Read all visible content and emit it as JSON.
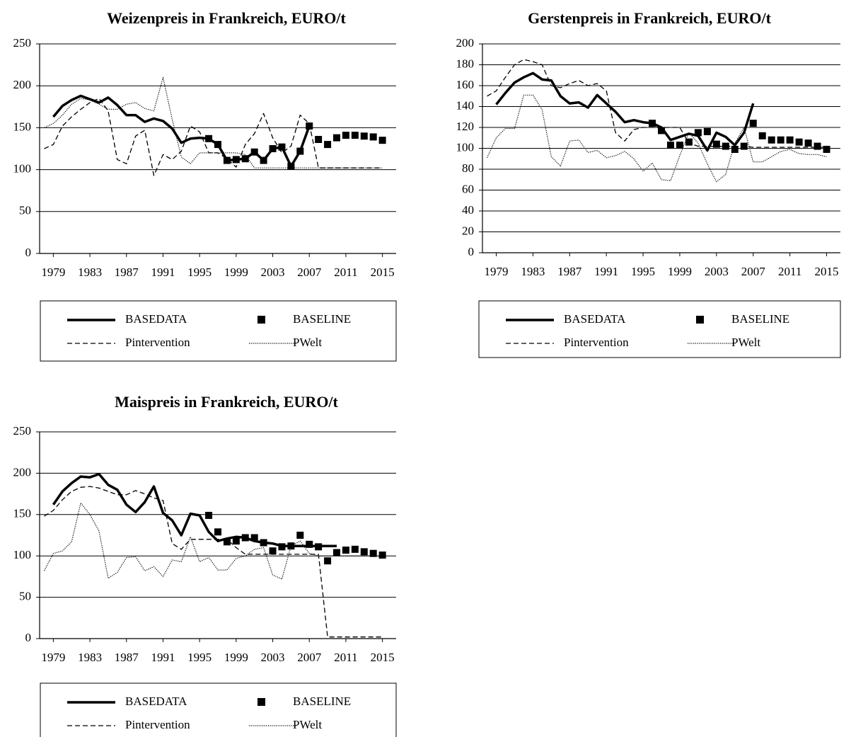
{
  "chart_data": [
    {
      "type": "line",
      "title": "Weizenpreis in Frankreich, EURO/t",
      "x": [
        1978,
        1979,
        1980,
        1981,
        1982,
        1983,
        1984,
        1985,
        1986,
        1987,
        1988,
        1989,
        1990,
        1991,
        1992,
        1993,
        1994,
        1995,
        1996,
        1997,
        1998,
        1999,
        2000,
        2001,
        2002,
        2003,
        2004,
        2005,
        2006,
        2007,
        2008,
        2009,
        2010,
        2011,
        2012,
        2013,
        2014,
        2015
      ],
      "xlim": [
        1977.5,
        2016.5
      ],
      "xticks": [
        1979,
        1983,
        1987,
        1991,
        1995,
        1999,
        2003,
        2007,
        2011,
        2015
      ],
      "ylim": [
        0,
        250
      ],
      "yticks": [
        0,
        50,
        100,
        150,
        200,
        250
      ],
      "grid": true,
      "legend": "bottom",
      "series": [
        {
          "name": "BASEDATA",
          "color": "#000000",
          "style": "solid",
          "values": [
            null,
            163,
            176,
            183,
            188,
            184,
            180,
            186,
            177,
            165,
            165,
            157,
            161,
            158,
            149,
            132,
            137,
            138,
            137,
            130,
            111,
            112,
            113,
            121,
            111,
            125,
            127,
            104,
            122,
            152,
            null,
            null,
            null,
            null,
            null,
            null,
            null,
            null
          ]
        },
        {
          "name": "BASELINE",
          "color": "#000000",
          "style": "markers",
          "values": [
            null,
            null,
            null,
            null,
            null,
            null,
            null,
            null,
            null,
            null,
            null,
            null,
            null,
            null,
            null,
            null,
            null,
            null,
            137,
            130,
            111,
            112,
            113,
            121,
            111,
            125,
            127,
            104,
            122,
            152,
            136,
            130,
            138,
            141,
            141,
            140,
            139,
            135
          ]
        },
        {
          "name": "Pintervention",
          "color": "#000000",
          "style": "dashed",
          "values": [
            125,
            130,
            152,
            163,
            172,
            180,
            185,
            170,
            112,
            107,
            140,
            147,
            93,
            118,
            112,
            122,
            152,
            145,
            120,
            120,
            113,
            103,
            130,
            143,
            167,
            138,
            120,
            128,
            165,
            155,
            102,
            102,
            102,
            102,
            102,
            102,
            102,
            102
          ]
        },
        {
          "name": "PWelt",
          "color": "#000000",
          "style": "dotted",
          "values": [
            150,
            155,
            165,
            178,
            185,
            183,
            178,
            172,
            172,
            178,
            180,
            173,
            170,
            210,
            160,
            115,
            107,
            120,
            120,
            120,
            120,
            120,
            118,
            102,
            102,
            102,
            102,
            102,
            102,
            102,
            102,
            102,
            102,
            102,
            102,
            102,
            102,
            102
          ]
        }
      ]
    },
    {
      "type": "line",
      "title": "Gerstenpreis in Frankreich, EURO/t",
      "x": [
        1978,
        1979,
        1980,
        1981,
        1982,
        1983,
        1984,
        1985,
        1986,
        1987,
        1988,
        1989,
        1990,
        1991,
        1992,
        1993,
        1994,
        1995,
        1996,
        1997,
        1998,
        1999,
        2000,
        2001,
        2002,
        2003,
        2004,
        2005,
        2006,
        2007,
        2008,
        2009,
        2010,
        2011,
        2012,
        2013,
        2014,
        2015
      ],
      "xlim": [
        1977.5,
        2016.5
      ],
      "xticks": [
        1979,
        1983,
        1987,
        1991,
        1995,
        1999,
        2003,
        2007,
        2011,
        2015
      ],
      "ylim": [
        0,
        200
      ],
      "yticks": [
        0,
        20,
        40,
        60,
        80,
        100,
        120,
        140,
        160,
        180,
        200
      ],
      "grid": true,
      "legend": "bottom",
      "series": [
        {
          "name": "BASEDATA",
          "color": "#000000",
          "style": "solid",
          "values": [
            null,
            142,
            153,
            163,
            168,
            172,
            166,
            165,
            150,
            143,
            144,
            139,
            151,
            143,
            135,
            125,
            127,
            125,
            124,
            120,
            108,
            111,
            114,
            112,
            98,
            115,
            111,
            103,
            115,
            143,
            null,
            null,
            null,
            null,
            null,
            null,
            null,
            null
          ]
        },
        {
          "name": "BASELINE",
          "color": "#000000",
          "style": "markers",
          "values": [
            null,
            null,
            null,
            null,
            null,
            null,
            null,
            null,
            null,
            null,
            null,
            null,
            null,
            null,
            null,
            null,
            null,
            null,
            124,
            117,
            103,
            103,
            106,
            115,
            116,
            104,
            102,
            99,
            102,
            124,
            112,
            108,
            108,
            108,
            106,
            105,
            102,
            99
          ]
        },
        {
          "name": "Pintervention",
          "color": "#000000",
          "style": "dashed",
          "values": [
            150,
            155,
            168,
            180,
            185,
            183,
            180,
            160,
            158,
            162,
            165,
            160,
            162,
            155,
            115,
            107,
            118,
            120,
            120,
            120,
            120,
            120,
            105,
            102,
            102,
            102,
            102,
            102,
            102,
            101,
            101,
            101,
            101,
            101,
            101,
            101,
            101,
            101
          ]
        },
        {
          "name": "PWelt",
          "color": "#000000",
          "style": "dotted",
          "values": [
            91,
            110,
            119,
            119,
            151,
            151,
            137,
            92,
            83,
            107,
            108,
            96,
            98,
            91,
            93,
            97,
            90,
            78,
            86,
            70,
            69,
            93,
            115,
            105,
            85,
            68,
            75,
            105,
            120,
            87,
            87,
            92,
            97,
            99,
            95,
            94,
            94,
            92
          ]
        }
      ]
    },
    {
      "type": "line",
      "title": "Maispreis in Frankreich, EURO/t",
      "x": [
        1978,
        1979,
        1980,
        1981,
        1982,
        1983,
        1984,
        1985,
        1986,
        1987,
        1988,
        1989,
        1990,
        1991,
        1992,
        1993,
        1994,
        1995,
        1996,
        1997,
        1998,
        1999,
        2000,
        2001,
        2002,
        2003,
        2004,
        2005,
        2006,
        2007,
        2008,
        2009,
        2010,
        2011,
        2012,
        2013,
        2014,
        2015
      ],
      "xlim": [
        1977.5,
        2016.5
      ],
      "xticks": [
        1979,
        1983,
        1987,
        1991,
        1995,
        1999,
        2003,
        2007,
        2011,
        2015
      ],
      "ylim": [
        0,
        250
      ],
      "yticks": [
        0,
        50,
        100,
        150,
        200,
        250
      ],
      "grid": true,
      "legend": "bottom",
      "series": [
        {
          "name": "BASEDATA",
          "color": "#000000",
          "style": "solid",
          "values": [
            null,
            162,
            178,
            188,
            196,
            195,
            199,
            186,
            180,
            162,
            153,
            165,
            184,
            152,
            143,
            125,
            151,
            149,
            129,
            118,
            121,
            123,
            122,
            118,
            116,
            115,
            112,
            112,
            112,
            112,
            112,
            112,
            112,
            null,
            null,
            null,
            null,
            null
          ]
        },
        {
          "name": "BASELINE",
          "color": "#000000",
          "style": "markers",
          "values": [
            null,
            null,
            null,
            null,
            null,
            null,
            null,
            null,
            null,
            null,
            null,
            null,
            null,
            null,
            null,
            null,
            null,
            null,
            149,
            129,
            117,
            118,
            122,
            122,
            116,
            106,
            111,
            112,
            125,
            114,
            111,
            94,
            104,
            107,
            108,
            105,
            103,
            101
          ]
        },
        {
          "name": "Pintervention",
          "color": "#000000",
          "style": "dashed",
          "values": [
            148,
            155,
            168,
            178,
            183,
            184,
            182,
            178,
            174,
            174,
            179,
            175,
            170,
            167,
            115,
            108,
            120,
            120,
            120,
            120,
            120,
            110,
            102,
            102,
            102,
            102,
            102,
            102,
            102,
            102,
            102,
            2,
            2,
            2,
            2,
            2,
            2,
            2
          ]
        },
        {
          "name": "PWelt",
          "color": "#000000",
          "style": "dotted",
          "values": [
            82,
            103,
            106,
            117,
            164,
            150,
            130,
            73,
            80,
            98,
            99,
            82,
            87,
            75,
            95,
            93,
            123,
            93,
            98,
            83,
            83,
            97,
            100,
            108,
            110,
            77,
            72,
            112,
            118,
            103,
            100,
            100,
            100,
            100,
            100,
            100,
            100,
            100
          ]
        }
      ]
    }
  ]
}
